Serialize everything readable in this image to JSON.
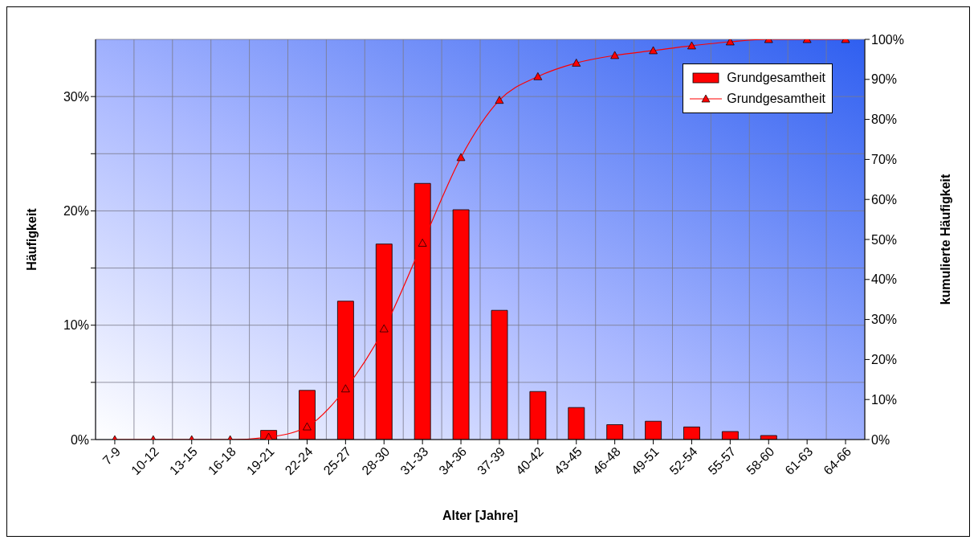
{
  "chart_data": {
    "type": "bar",
    "xlabel": "Alter [Jahre]",
    "ylabel": "Häufigkeit",
    "y2label": "kumulierte Häufigkeit",
    "categories": [
      "7-9",
      "10-12",
      "13-15",
      "16-18",
      "19-21",
      "22-24",
      "25-27",
      "28-30",
      "31-33",
      "34-36",
      "37-39",
      "40-42",
      "43-45",
      "46-48",
      "49-51",
      "52-54",
      "55-57",
      "58-60",
      "61-63",
      "64-66"
    ],
    "series": [
      {
        "name": "Grundgesamtheit",
        "color": "#ff0000",
        "values": [
          0,
          0,
          0,
          0,
          0.8,
          4.3,
          12.1,
          17.1,
          22.4,
          20.1,
          11.3,
          4.2,
          2.8,
          1.3,
          1.6,
          1.1,
          0.7,
          0.35,
          0,
          0
        ]
      },
      {
        "name": "Grundgesamtheit",
        "type": "line",
        "axis": "y2",
        "color": "#ff0000",
        "values": [
          0,
          0,
          0,
          0,
          0.6,
          3.2,
          12.7,
          27.7,
          49.1,
          70.5,
          84.8,
          90.7,
          94.1,
          96.0,
          97.2,
          98.4,
          99.4,
          100,
          100,
          100
        ]
      }
    ],
    "ylim": [
      0,
      35
    ],
    "yticks": [
      {
        "value": 0,
        "label": "0%"
      },
      {
        "value": 5,
        "label": null
      },
      {
        "value": 10,
        "label": "10%"
      },
      {
        "value": 15,
        "label": null
      },
      {
        "value": 20,
        "label": "20%"
      },
      {
        "value": 25,
        "label": null
      },
      {
        "value": 30,
        "label": "30%"
      }
    ],
    "y2lim": [
      0,
      100
    ],
    "y2ticks": [
      {
        "value": 0,
        "label": "0%"
      },
      {
        "value": 10,
        "label": "10%"
      },
      {
        "value": 20,
        "label": "20%"
      },
      {
        "value": 30,
        "label": "30%"
      },
      {
        "value": 40,
        "label": "40%"
      },
      {
        "value": 50,
        "label": "50%"
      },
      {
        "value": 60,
        "label": "60%"
      },
      {
        "value": 70,
        "label": "70%"
      },
      {
        "value": 80,
        "label": "80%"
      },
      {
        "value": 90,
        "label": "90%"
      },
      {
        "value": 100,
        "label": "100%"
      }
    ],
    "grid": true,
    "legend": "top right",
    "marker": "triangle",
    "line_style": "solid"
  }
}
